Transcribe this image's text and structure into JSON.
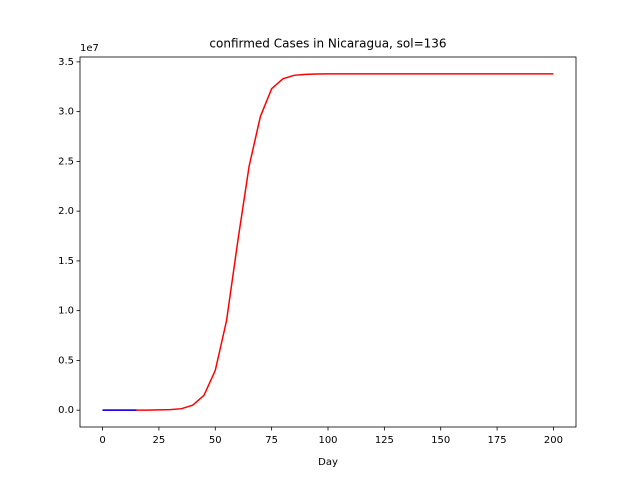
{
  "chart_data": {
    "type": "line",
    "title": "confirmed Cases in Nicaragua, sol=136",
    "x_label": "Day",
    "y_offset_label": "1e7",
    "xlim": [
      -10,
      210
    ],
    "xticks": [
      0,
      25,
      50,
      75,
      100,
      125,
      150,
      175,
      200
    ],
    "ylim": [
      -1690000,
      35490000
    ],
    "yticks": [
      {
        "value": 0,
        "label": "0.0"
      },
      {
        "value": 5000000,
        "label": "0.5"
      },
      {
        "value": 10000000,
        "label": "1.0"
      },
      {
        "value": 15000000,
        "label": "1.5"
      },
      {
        "value": 20000000,
        "label": "2.0"
      },
      {
        "value": 25000000,
        "label": "2.5"
      },
      {
        "value": 30000000,
        "label": "3.0"
      },
      {
        "value": 35000000,
        "label": "3.5"
      }
    ],
    "grid": false,
    "series": [
      {
        "color": "#ff0000",
        "x": [
          0,
          5,
          10,
          15,
          20,
          25,
          30,
          35,
          40,
          45,
          50,
          55,
          60,
          65,
          70,
          75,
          80,
          85,
          90,
          95,
          100,
          125,
          150,
          175,
          200
        ],
        "values": [
          0,
          0,
          0,
          0,
          10000,
          30000,
          60000,
          150000,
          500000,
          1500000,
          4000000,
          9000000,
          17000000,
          24500000,
          29500000,
          32300000,
          33300000,
          33650000,
          33750000,
          33780000,
          33790000,
          33800000,
          33800000,
          33800000,
          33800000
        ]
      },
      {
        "color": "#0000ff",
        "x": [
          0,
          5,
          10,
          15
        ],
        "values": [
          0,
          100,
          500,
          1500
        ]
      }
    ]
  }
}
